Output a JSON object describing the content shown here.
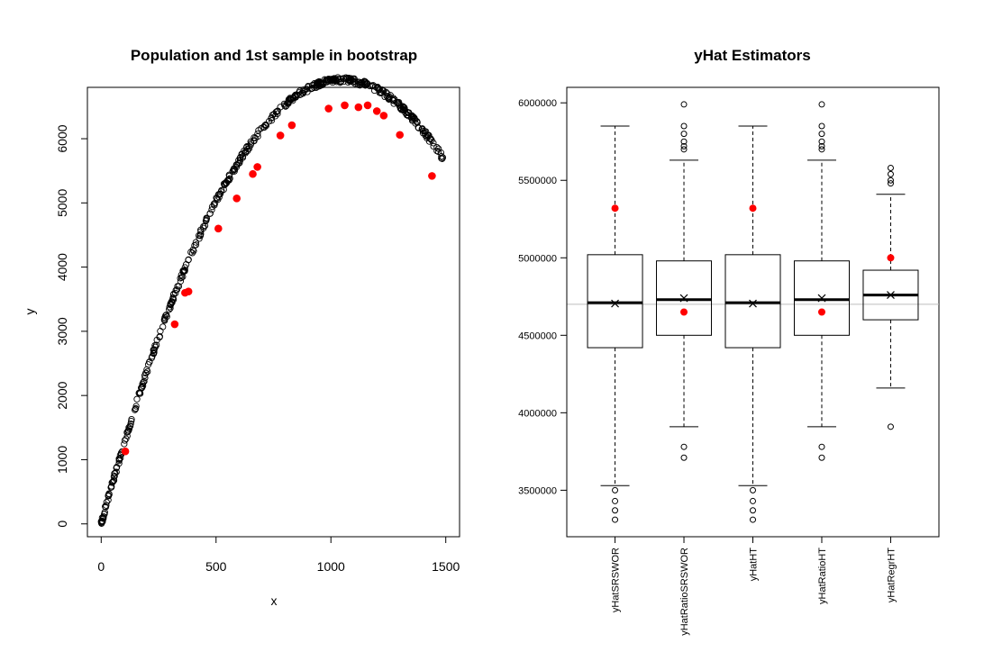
{
  "chart_data": [
    {
      "type": "scatter",
      "title": "Population and 1st sample in bootstrap",
      "xlabel": "x",
      "ylabel": "y",
      "xlim": [
        -60,
        1560
      ],
      "ylim": [
        -200,
        6800
      ],
      "xticks": [
        0,
        500,
        1000,
        1500
      ],
      "yticks": [
        0,
        1000,
        2000,
        3000,
        4000,
        5000,
        6000
      ],
      "population_curve": {
        "description": "dense open circles following y = 13.2x - 0.0063x^2",
        "x_range": [
          0,
          1490
        ]
      },
      "series": [
        {
          "marker": "filled-circle",
          "color": "#ff0000",
          "points": [
            [
              105,
              1130
            ],
            [
              320,
              3110
            ],
            [
              365,
              3600
            ],
            [
              380,
              3620
            ],
            [
              510,
              4600
            ],
            [
              590,
              5070
            ],
            [
              660,
              5450
            ],
            [
              680,
              5560
            ],
            [
              780,
              6050
            ],
            [
              830,
              6210
            ],
            [
              990,
              6470
            ],
            [
              1060,
              6520
            ],
            [
              1120,
              6490
            ],
            [
              1160,
              6520
            ],
            [
              1200,
              6430
            ],
            [
              1230,
              6360
            ],
            [
              1300,
              6060
            ],
            [
              1440,
              5420
            ]
          ]
        }
      ]
    },
    {
      "type": "box",
      "title": "yHat Estimators",
      "ylim": [
        3200000,
        6100000
      ],
      "yticks": [
        3500000,
        4000000,
        4500000,
        5000000,
        5500000,
        6000000
      ],
      "ytick_labels": [
        "3500000",
        "4000000",
        "4500000",
        "5000000",
        "5500000",
        "6000000"
      ],
      "reference_line": 4700000,
      "reference_line_color": "#bebebe",
      "categories": [
        "yHatSRSWOR",
        "yHatRatioSRSWOR",
        "yHatHT",
        "yHatRatioHT",
        "yHatRegrHT"
      ],
      "boxes": [
        {
          "name": "yHatSRSWOR",
          "whisker_low": 3530000,
          "q1": 4420000,
          "median": 4710000,
          "q3": 5020000,
          "whisker_high": 5850000,
          "mean": 4705000,
          "first_sample": 5320000,
          "outliers": [
            3500000,
            3430000,
            3370000,
            3310000
          ]
        },
        {
          "name": "yHatRatioSRSWOR",
          "whisker_low": 3910000,
          "q1": 4500000,
          "median": 4730000,
          "q3": 4980000,
          "whisker_high": 5630000,
          "mean": 4740000,
          "first_sample": 4650000,
          "outliers": [
            5990000,
            5850000,
            5800000,
            5750000,
            5720000,
            5700000,
            3780000,
            3710000
          ]
        },
        {
          "name": "yHatHT",
          "whisker_low": 3530000,
          "q1": 4420000,
          "median": 4710000,
          "q3": 5020000,
          "whisker_high": 5850000,
          "mean": 4705000,
          "first_sample": 5320000,
          "outliers": [
            3500000,
            3430000,
            3370000,
            3310000
          ]
        },
        {
          "name": "yHatRatioHT",
          "whisker_low": 3910000,
          "q1": 4500000,
          "median": 4730000,
          "q3": 4980000,
          "whisker_high": 5630000,
          "mean": 4740000,
          "first_sample": 4650000,
          "outliers": [
            5990000,
            5850000,
            5800000,
            5750000,
            5720000,
            5700000,
            3780000,
            3710000
          ]
        },
        {
          "name": "yHatRegrHT",
          "whisker_low": 4160000,
          "q1": 4600000,
          "median": 4760000,
          "q3": 4920000,
          "whisker_high": 5410000,
          "mean": 4760000,
          "first_sample": 5000000,
          "outliers": [
            5580000,
            5540000,
            5500000,
            5480000,
            3910000
          ]
        }
      ],
      "mean_marker": "x",
      "first_sample_color": "#ff0000"
    }
  ]
}
